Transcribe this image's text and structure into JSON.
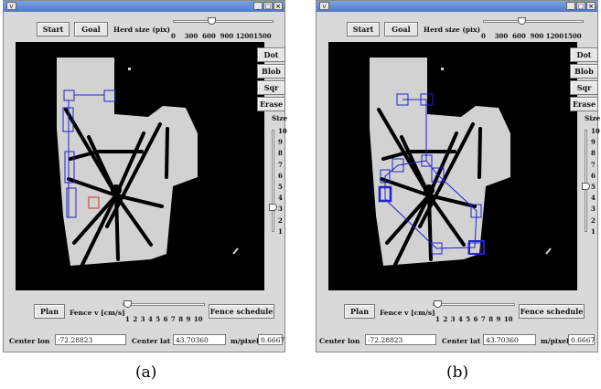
{
  "panels": [
    {
      "window": {
        "menu_glyph": "v",
        "controls": [
          "_",
          "□",
          "×"
        ]
      },
      "top": {
        "start_label": "Start",
        "goal_label": "Goal",
        "herd_label": "Herd size (pix)",
        "herd_ticks": [
          "0",
          "300",
          "600",
          "900",
          "1200",
          "1500"
        ],
        "herd_value_fraction": 0.38
      },
      "side": {
        "dot_label": "Dot",
        "blob_label": "Blob",
        "sqr_label": "Sqr",
        "erase_label": "Erase",
        "size_label": "Size",
        "size_ticks": [
          "10",
          "9",
          "8",
          "7",
          "6",
          "5",
          "4",
          "3",
          "2",
          "1"
        ],
        "size_value": 3
      },
      "bottom": {
        "plan_label": "Plan",
        "fence_label": "Fence v [cm/s]",
        "fence_ticks": [
          "1",
          "2",
          "3",
          "4",
          "5",
          "6",
          "7",
          "8",
          "9",
          "10"
        ],
        "fence_value": 1,
        "fence_schedule_label": "Fence schedule"
      },
      "coords": {
        "lon_label": "Center lon",
        "lon_value": "-72.28823",
        "lat_label": "Center lat",
        "lat_value": "43.70360",
        "mpp_label": "m/pixel",
        "mpp_value": "0.6667"
      },
      "caption": "(a)"
    },
    {
      "window": {
        "menu_glyph": "v",
        "controls": [
          "_",
          "□",
          "×"
        ]
      },
      "top": {
        "start_label": "Start",
        "goal_label": "Goal",
        "herd_label": "Herd size (pix)",
        "herd_ticks": [
          "0",
          "300",
          "600",
          "900",
          "1200",
          "1500"
        ],
        "herd_value_fraction": 0.38
      },
      "side": {
        "dot_label": "Dot",
        "blob_label": "Blob",
        "sqr_label": "Sqr",
        "erase_label": "Erase",
        "size_label": "Size",
        "size_ticks": [
          "10",
          "9",
          "8",
          "7",
          "6",
          "5",
          "4",
          "3",
          "2",
          "1"
        ],
        "size_value": 5
      },
      "bottom": {
        "plan_label": "Plan",
        "fence_label": "Fence v [cm/s]",
        "fence_ticks": [
          "1",
          "2",
          "3",
          "4",
          "5",
          "6",
          "7",
          "8",
          "9",
          "10"
        ],
        "fence_value": 1,
        "fence_schedule_label": "Fence schedule"
      },
      "coords": {
        "lon_label": "Center lon",
        "lon_value": "-72.28823",
        "lat_label": "Center lat",
        "lat_value": "43.70360",
        "mpp_label": "m/pixel",
        "mpp_value": "0.6667"
      },
      "caption": "(b)"
    }
  ],
  "colors": {
    "path_blue": "#2222cc",
    "highlight_red": "#cc3333",
    "field_gray": "#d2d2d2",
    "title_blue": "#5b86d3"
  }
}
